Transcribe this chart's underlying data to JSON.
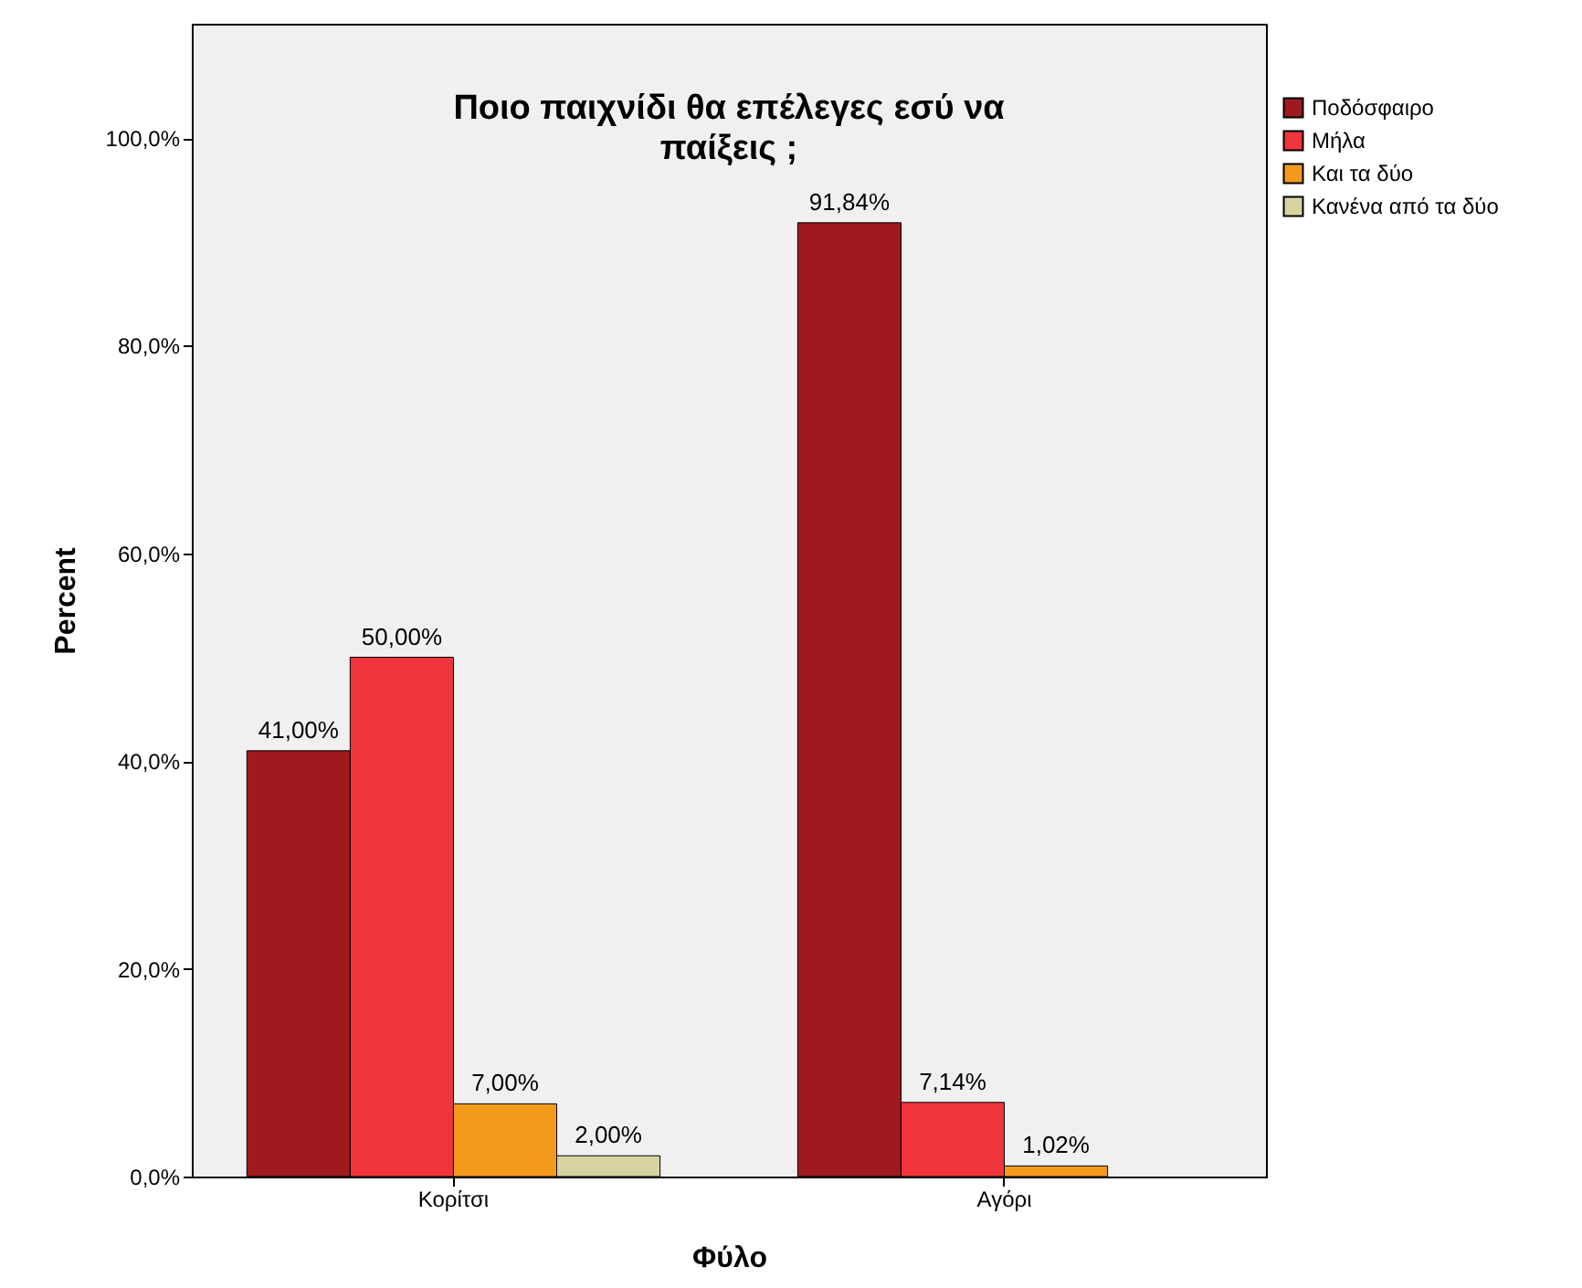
{
  "chart_data": {
    "type": "bar",
    "title": "Ποιο παιχνίδι θα επέλεγες εσύ να παίξεις ;",
    "xlabel": "Φύλο",
    "ylabel": "Percent",
    "categories": [
      "Κορίτσι",
      "Αγόρι"
    ],
    "series": [
      {
        "name": "Ποδόσφαιρο",
        "color": "#9e1a1e",
        "values": [
          41,
          91.84
        ],
        "value_labels": [
          "41,00%",
          "91,84%"
        ]
      },
      {
        "name": "Μήλα",
        "color": "#f0353c",
        "values": [
          50,
          7.14
        ],
        "value_labels": [
          "50,00%",
          "7,14%"
        ]
      },
      {
        "name": "Και τα δύο",
        "color": "#f39a1d",
        "values": [
          7,
          1.02
        ],
        "value_labels": [
          "7,00%",
          "1,02%"
        ]
      },
      {
        "name": "Κανένα από τα δύο",
        "color": "#d6d3a0",
        "values": [
          2,
          null
        ],
        "value_labels": [
          "2,00%",
          null
        ]
      }
    ],
    "ylim": [
      0,
      111
    ],
    "yticks": [
      {
        "value": 0,
        "label": "0,0%"
      },
      {
        "value": 20,
        "label": "20,0%"
      },
      {
        "value": 40,
        "label": "40,0%"
      },
      {
        "value": 60,
        "label": "60,0%"
      },
      {
        "value": 80,
        "label": "80,0%"
      },
      {
        "value": 100,
        "label": "100,0%"
      }
    ],
    "grid": false,
    "legend": "top right"
  }
}
